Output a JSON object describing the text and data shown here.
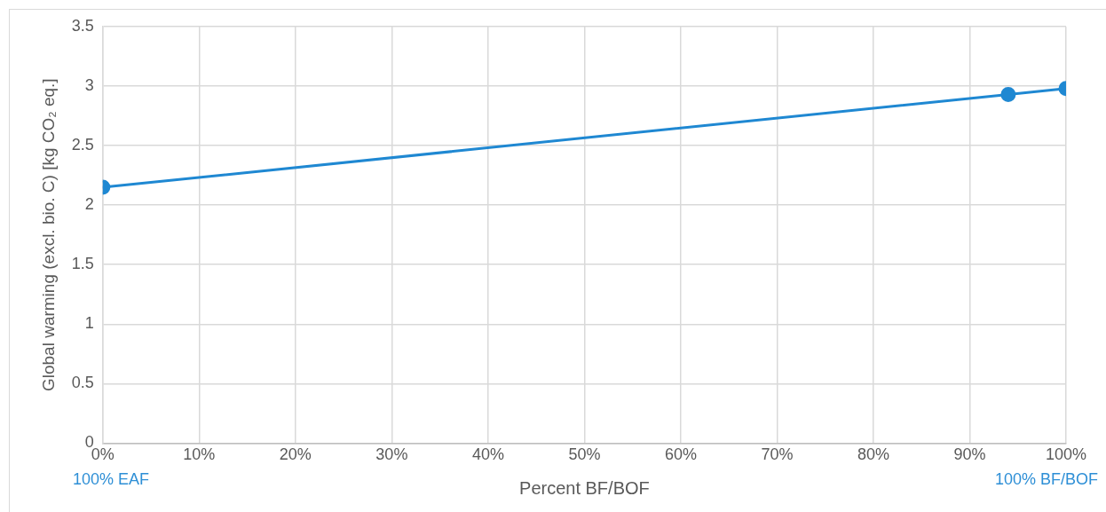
{
  "chart_data": {
    "type": "line",
    "xlabel": "Percent BF/BOF",
    "ylabel": "Global warming (excl. bio. C) [kg CO₂ eq.]",
    "x": [
      0,
      94,
      100
    ],
    "series": [
      {
        "color": "#1f88d2",
        "values": [
          2.15,
          2.93,
          2.98
        ]
      }
    ],
    "xlim": [
      0,
      100
    ],
    "xticks": [
      {
        "value": 0,
        "label": "0%"
      },
      {
        "value": 10,
        "label": "10%"
      },
      {
        "value": 20,
        "label": "20%"
      },
      {
        "value": 30,
        "label": "30%"
      },
      {
        "value": 40,
        "label": "40%"
      },
      {
        "value": 50,
        "label": "50%"
      },
      {
        "value": 60,
        "label": "60%"
      },
      {
        "value": 70,
        "label": "70%"
      },
      {
        "value": 80,
        "label": "80%"
      },
      {
        "value": 90,
        "label": "90%"
      },
      {
        "value": 100,
        "label": "100%"
      }
    ],
    "ylim": [
      0,
      3.5
    ],
    "yticks": [
      0,
      0.5,
      1,
      1.5,
      2,
      2.5,
      3,
      3.5
    ],
    "grid": true,
    "legend": false,
    "marker": "circle",
    "line_style": "solid",
    "annotations": [
      "100% EAF",
      "100% BF/BOF"
    ]
  }
}
